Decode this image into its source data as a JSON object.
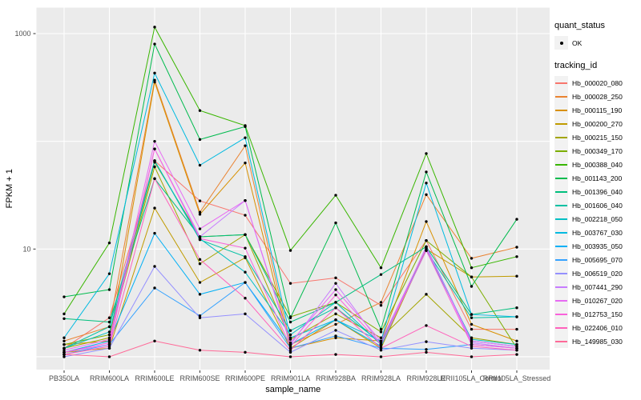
{
  "chart_data": {
    "type": "line",
    "title": "",
    "xlabel": "sample_name",
    "ylabel": "FPKM + 1",
    "yscale": "log10",
    "ylim": [
      1,
      1300
    ],
    "grid": true,
    "legend_position": "right",
    "panel_background": "#EBEBEB",
    "gridline_color": "#FFFFFF",
    "point_color": "#000000",
    "tick_label_color": "#4D4D4D",
    "y_tick_labels": [
      "1000",
      "10"
    ],
    "y_tick_values": [
      1000,
      10
    ],
    "y_gridline_values": [
      1,
      10,
      100,
      1000
    ],
    "categories": [
      "PB350LA",
      "RRIM600LA",
      "RRIM600LE",
      "RRIM600SE",
      "RRIM600PE",
      "RRIM901LA",
      "RRIM928BA",
      "RRIM928LA",
      "RRIM928LE",
      "RRII105LA_Control",
      "RRII105LA_Stressed"
    ],
    "series": [
      {
        "name": "Hb_000020_080",
        "color": "#F8766D",
        "values": [
          1.2,
          2.3,
          66,
          28,
          20.6,
          4.8,
          5.4,
          3.0,
          12.0,
          1.8,
          1.8
        ]
      },
      {
        "name": "Hb_000028_250",
        "color": "#EA8331",
        "values": [
          1.4,
          1.9,
          370,
          22,
          91,
          1.3,
          2.0,
          3.2,
          32,
          8.2,
          10.4
        ]
      },
      {
        "name": "Hb_000115_190",
        "color": "#D89000",
        "values": [
          1.3,
          1.4,
          355,
          21,
          63,
          1.2,
          1.5,
          1.4,
          18,
          2.0,
          1.4
        ]
      },
      {
        "name": "Hb_000200_270",
        "color": "#C09B00",
        "values": [
          1.1,
          1.2,
          24,
          4.9,
          8.3,
          1.2,
          2.2,
          1.2,
          10.0,
          5.5,
          5.6
        ]
      },
      {
        "name": "Hb_000215_150",
        "color": "#A3A500",
        "values": [
          1.2,
          1.5,
          58,
          7.3,
          13.6,
          1.45,
          2.5,
          1.5,
          3.8,
          1.5,
          1.3
        ]
      },
      {
        "name": "Hb_000349_170",
        "color": "#7CAE00",
        "values": [
          1.3,
          1.6,
          64,
          13,
          13.6,
          2.35,
          3.2,
          1.7,
          12.0,
          5.5,
          1.2
        ]
      },
      {
        "name": "Hb_000388_040",
        "color": "#39B600",
        "values": [
          2.5,
          11.4,
          1150,
          193,
          140,
          9.7,
          31.6,
          6.7,
          77,
          6.7,
          8.5
        ]
      },
      {
        "name": "Hb_001143_200",
        "color": "#00BB4E",
        "values": [
          3.6,
          4.2,
          800,
          104,
          137,
          2.3,
          17.5,
          1.8,
          52,
          4.5,
          18.9
        ]
      },
      {
        "name": "Hb_001396_040",
        "color": "#00BF7D",
        "values": [
          2.26,
          2.1,
          45,
          13,
          13.6,
          2.1,
          3.2,
          5.8,
          10.5,
          2.47,
          2.85
        ]
      },
      {
        "name": "Hb_001606_040",
        "color": "#00C1A3",
        "values": [
          1.2,
          1.9,
          66,
          12.2,
          8.5,
          1.75,
          2.85,
          1.35,
          9.7,
          2.3,
          2.35
        ]
      },
      {
        "name": "Hb_002218_050",
        "color": "#00BFC4",
        "values": [
          1.2,
          1.7,
          66,
          12.5,
          6.1,
          1.6,
          3.2,
          1.3,
          9.7,
          1.45,
          1.3
        ]
      },
      {
        "name": "Hb_003767_030",
        "color": "#00BAE0",
        "values": [
          1.5,
          5.9,
          430,
          60,
          108,
          1.5,
          2.2,
          1.4,
          41,
          2.47,
          2.35
        ]
      },
      {
        "name": "Hb_003935_050",
        "color": "#00B0F6",
        "values": [
          1.1,
          1.4,
          14,
          3.8,
          4.9,
          1.3,
          2.2,
          1.25,
          10.5,
          1.4,
          1.25
        ]
      },
      {
        "name": "Hb_005695_070",
        "color": "#35A2FF",
        "values": [
          1.05,
          1.3,
          4.35,
          2.4,
          4.9,
          1.2,
          1.56,
          1.2,
          1.17,
          1.3,
          1.2
        ]
      },
      {
        "name": "Hb_006519_020",
        "color": "#9590FF",
        "values": [
          1.0,
          1.2,
          6.9,
          2.3,
          2.5,
          1.1,
          1.76,
          1.15,
          1.38,
          1.2,
          1.15
        ]
      },
      {
        "name": "Hb_007441_290",
        "color": "#C77CFF",
        "values": [
          1.1,
          1.3,
          85,
          13,
          28.2,
          1.3,
          4.8,
          1.3,
          10.5,
          1.35,
          1.2
        ]
      },
      {
        "name": "Hb_010267_020",
        "color": "#E76BF3",
        "values": [
          1.15,
          1.45,
          100,
          15.4,
          28.2,
          1.35,
          4.2,
          1.4,
          10.2,
          1.4,
          1.25
        ]
      },
      {
        "name": "Hb_012753_150",
        "color": "#FA62DB",
        "values": [
          1.1,
          1.35,
          85,
          12.5,
          10.2,
          1.25,
          3.75,
          1.3,
          9.7,
          1.3,
          1.2
        ]
      },
      {
        "name": "Hb_022406_010",
        "color": "#FF62BC",
        "values": [
          1.05,
          1.25,
          45,
          8.0,
          3.5,
          1.15,
          2.85,
          1.2,
          1.95,
          1.25,
          1.15
        ]
      },
      {
        "name": "Hb_149985_030",
        "color": "#FF6A98",
        "values": [
          1.05,
          1.0,
          1.4,
          1.15,
          1.1,
          1.0,
          1.05,
          1.0,
          1.1,
          1.0,
          1.05
        ]
      }
    ],
    "legends": {
      "quant_status_title": "quant_status",
      "quant_status_items": [
        "OK"
      ],
      "tracking_id_title": "tracking_id"
    }
  }
}
